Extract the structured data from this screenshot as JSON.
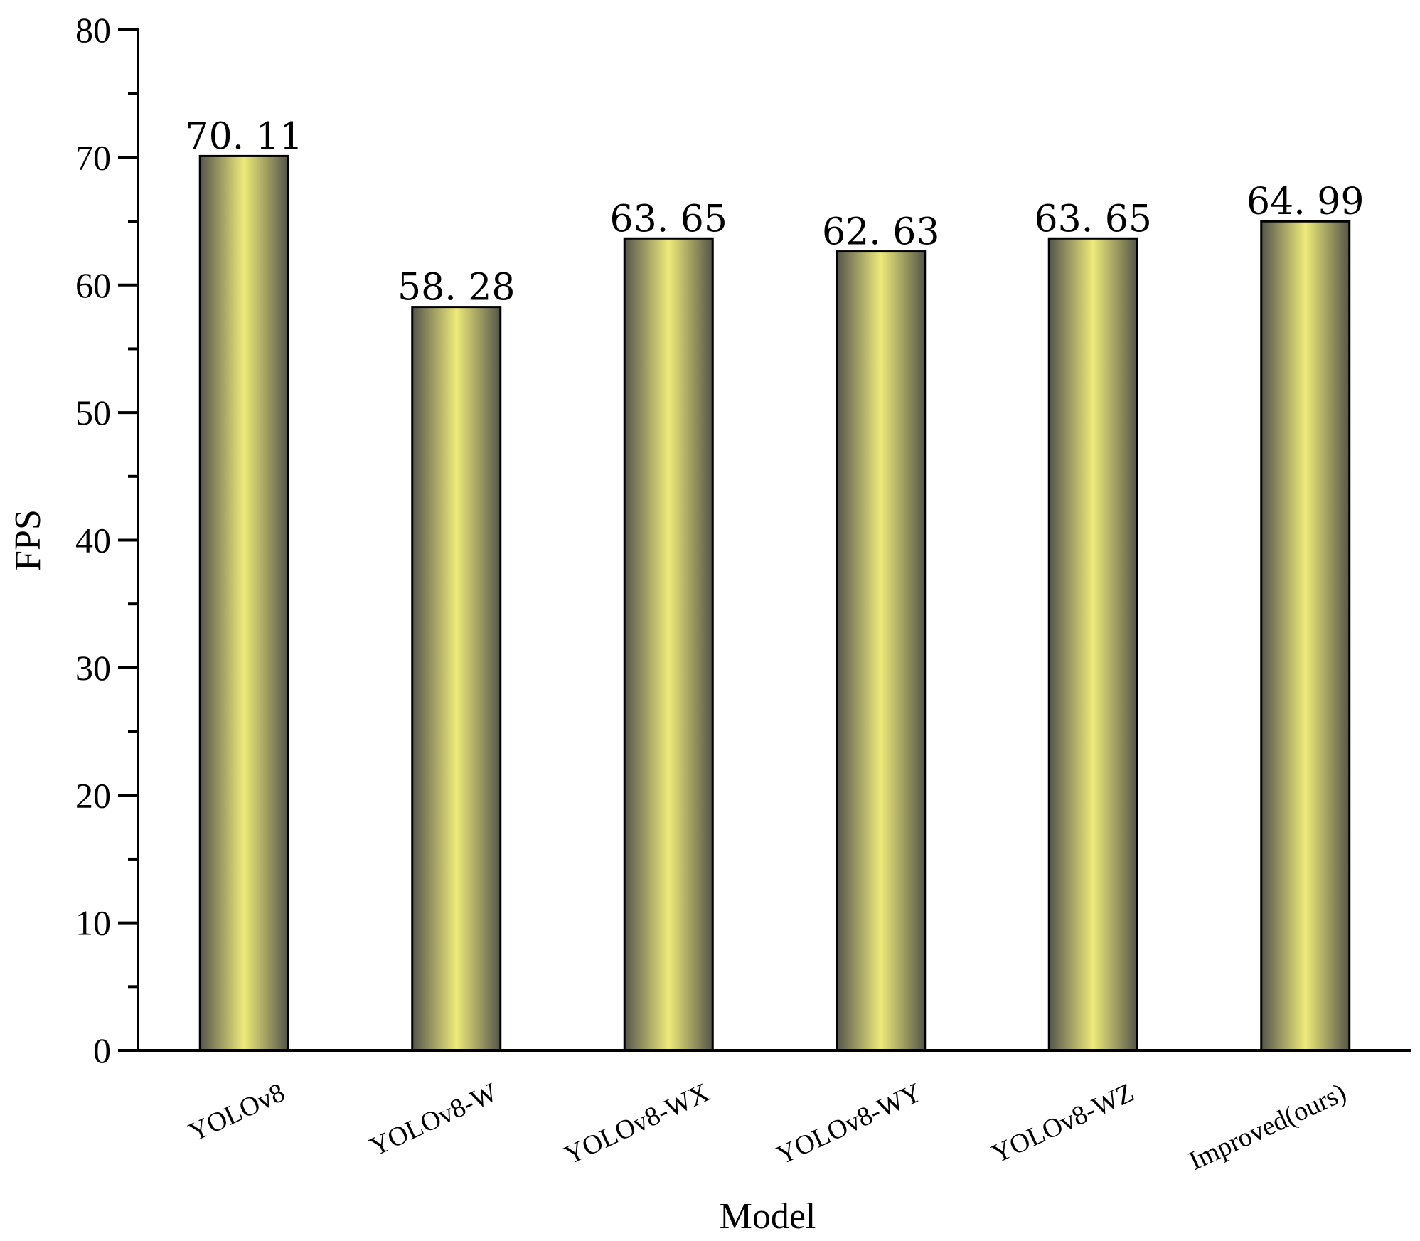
{
  "chart_data": {
    "type": "bar",
    "categories": [
      "YOLOv8",
      "YOLOv8-W",
      "YOLOv8-WX",
      "YOLOv8-WY",
      "YOLOv8-WZ",
      "Improved(ours)"
    ],
    "values": [
      70.11,
      58.28,
      63.65,
      62.63,
      63.65,
      64.99
    ],
    "value_labels": [
      "70. 11",
      "58. 28",
      "63. 65",
      "62. 63",
      "63. 65",
      "64. 99"
    ],
    "title": "",
    "xlabel": "Model",
    "ylabel": "FPS",
    "ylim": [
      0,
      80
    ],
    "yticks": [
      0,
      10,
      20,
      30,
      40,
      50,
      60,
      70,
      80
    ],
    "grid": false,
    "colors": {
      "bar_center": "#EEEA7A",
      "bar_edge": "#55554B",
      "bar_stroke": "#000000",
      "axis": "#000000"
    }
  }
}
